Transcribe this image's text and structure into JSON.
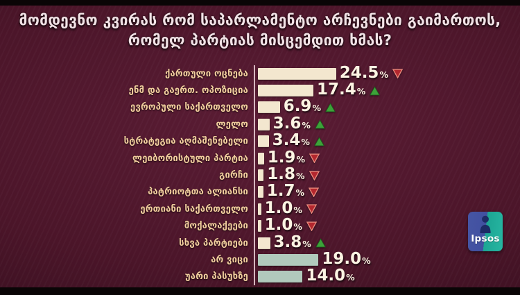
{
  "title": {
    "line1": "მომდევნო კვირას რომ საპარლამენტო არჩევნები გაიმართოს,",
    "line2": "რომელ პარტიას მისცემდით ხმას?"
  },
  "chart_data": {
    "type": "bar",
    "orientation": "horizontal",
    "title": "მომდევნო კვირას რომ საპარლამენტო არჩევნები გაიმართოს, რომელ პარტიას მისცემდით ხმას?",
    "unit": "%",
    "xlim": [
      0,
      26
    ],
    "percent_sign": "%",
    "categories": [
      "ქართული ოცნება",
      "ენმ და გაერთ. ოპოზიცია",
      "ევროპული საქართველო",
      "ლელო",
      "სტრატეგია აღმაშენებელი",
      "ლეიბორისტული პარტია",
      "გირჩი",
      "პატრიოტთა ალიანსი",
      "ერთიანი საქართველო",
      "მოქალაქეები",
      "სხვა პარტიები",
      "არ ვიცი",
      "უარი პასუხზე"
    ],
    "values": [
      24.5,
      17.4,
      6.9,
      3.6,
      3.4,
      1.9,
      1.8,
      1.7,
      1.0,
      1.0,
      3.8,
      19.0,
      14.0
    ],
    "rows": [
      {
        "label": "ქართული ოცნება",
        "value": 24.5,
        "value_text": "24.5",
        "trend": "down",
        "kind": "party"
      },
      {
        "label": "ენმ და გაერთ. ოპოზიცია",
        "value": 17.4,
        "value_text": "17.4",
        "trend": "up",
        "kind": "party"
      },
      {
        "label": "ევროპული საქართველო",
        "value": 6.9,
        "value_text": "6.9",
        "trend": "up",
        "kind": "party"
      },
      {
        "label": "ლელო",
        "value": 3.6,
        "value_text": "3.6",
        "trend": "up",
        "kind": "party"
      },
      {
        "label": "სტრატეგია აღმაშენებელი",
        "value": 3.4,
        "value_text": "3.4",
        "trend": "up",
        "kind": "party"
      },
      {
        "label": "ლეიბორისტული პარტია",
        "value": 1.9,
        "value_text": "1.9",
        "trend": "down",
        "kind": "party"
      },
      {
        "label": "გირჩი",
        "value": 1.8,
        "value_text": "1.8",
        "trend": "down",
        "kind": "party"
      },
      {
        "label": "პატრიოტთა ალიანსი",
        "value": 1.7,
        "value_text": "1.7",
        "trend": "down",
        "kind": "party"
      },
      {
        "label": "ერთიანი საქართველო",
        "value": 1.0,
        "value_text": "1.0",
        "trend": "down",
        "kind": "party"
      },
      {
        "label": "მოქალაქეები",
        "value": 1.0,
        "value_text": "1.0",
        "trend": "down",
        "kind": "party"
      },
      {
        "label": "სხვა პარტიები",
        "value": 3.8,
        "value_text": "3.8",
        "trend": "up",
        "kind": "party"
      },
      {
        "label": "არ ვიცი",
        "value": 19.0,
        "value_text": "19.0",
        "trend": "none",
        "kind": "neutral"
      },
      {
        "label": "უარი პასუხზე",
        "value": 14.0,
        "value_text": "14.0",
        "trend": "none",
        "kind": "neutral"
      }
    ],
    "colors": {
      "background": "#4b1529",
      "party_bar": "#f3e7cf",
      "neutral_bar": "#b1c9bc",
      "label_text": "#f2cf9e",
      "value_text": "#fdf4e3",
      "trend_up": "#3da239",
      "trend_down": "#b3272e",
      "trend_down_outline": "#e8887c",
      "axis_line": "#e4c7ce"
    },
    "legend": "none",
    "grid": false
  },
  "logo": {
    "text": "Ipsos"
  }
}
